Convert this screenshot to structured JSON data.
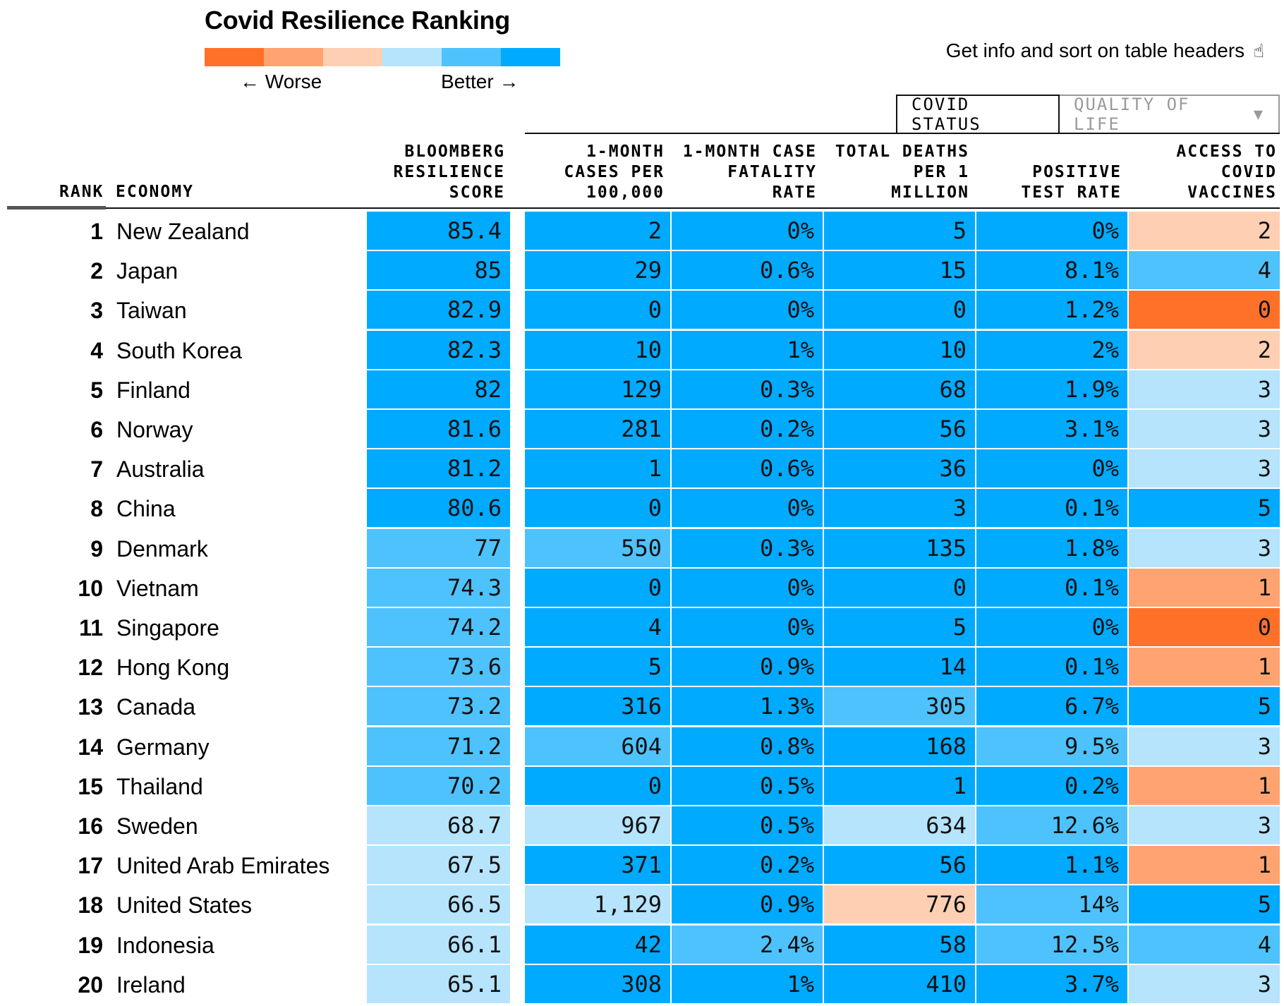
{
  "title": "Covid Resilience Ranking",
  "legend": {
    "colors": [
      "#ff7128",
      "#ffa470",
      "#ffcfb3",
      "#b5e4fc",
      "#4ec2fc",
      "#00aaff"
    ],
    "worse_label": "← Worse",
    "better_label": "Better →"
  },
  "hint": {
    "text": "Get info and sort on table headers",
    "icon": "hand-pointer-icon"
  },
  "tabs": [
    {
      "label": "COVID STATUS",
      "active": true
    },
    {
      "label": "QUALITY OF LIFE",
      "active": false,
      "icon": "filter-icon"
    }
  ],
  "headers": {
    "rank": "RANK",
    "economy": "ECONOMY",
    "score": [
      "BLOOMBERG",
      "RESILIENCE",
      "SCORE"
    ],
    "cases": [
      "1-MONTH",
      "CASES PER",
      "100,000"
    ],
    "fatality": [
      "1-MONTH CASE",
      "FATALITY",
      "RATE"
    ],
    "deaths": [
      "TOTAL DEATHS",
      "PER 1",
      "MILLION"
    ],
    "positive": [
      "POSITIVE",
      "TEST RATE"
    ],
    "vaccines": [
      "ACCESS TO",
      "COVID",
      "VACCINES"
    ]
  },
  "chart_data": {
    "type": "table",
    "title": "Covid Resilience Ranking",
    "color_scale": {
      "worst": "#ff7128",
      "worse": "#ffa470",
      "bad": "#ffcfb3",
      "ok": "#b5e4fc",
      "good": "#4ec2fc",
      "best": "#00aaff"
    },
    "columns": [
      "rank",
      "economy",
      "score",
      "cases",
      "fatality",
      "deaths",
      "positive",
      "vaccines"
    ],
    "rows": [
      {
        "rank": "1",
        "economy": "New Zealand",
        "score": "85.4",
        "cases": "2",
        "fatality": "0%",
        "deaths": "5",
        "positive": "0%",
        "vaccines": "2",
        "levels": [
          "best",
          "best",
          "best",
          "best",
          "best",
          "bad"
        ]
      },
      {
        "rank": "2",
        "economy": "Japan",
        "score": "85",
        "cases": "29",
        "fatality": "0.6%",
        "deaths": "15",
        "positive": "8.1%",
        "vaccines": "4",
        "levels": [
          "best",
          "best",
          "best",
          "best",
          "best",
          "good"
        ]
      },
      {
        "rank": "3",
        "economy": "Taiwan",
        "score": "82.9",
        "cases": "0",
        "fatality": "0%",
        "deaths": "0",
        "positive": "1.2%",
        "vaccines": "0",
        "levels": [
          "best",
          "best",
          "best",
          "best",
          "best",
          "worst"
        ]
      },
      {
        "rank": "4",
        "economy": "South Korea",
        "score": "82.3",
        "cases": "10",
        "fatality": "1%",
        "deaths": "10",
        "positive": "2%",
        "vaccines": "2",
        "levels": [
          "best",
          "best",
          "best",
          "best",
          "best",
          "bad"
        ]
      },
      {
        "rank": "5",
        "economy": "Finland",
        "score": "82",
        "cases": "129",
        "fatality": "0.3%",
        "deaths": "68",
        "positive": "1.9%",
        "vaccines": "3",
        "levels": [
          "best",
          "best",
          "best",
          "best",
          "best",
          "ok"
        ]
      },
      {
        "rank": "6",
        "economy": "Norway",
        "score": "81.6",
        "cases": "281",
        "fatality": "0.2%",
        "deaths": "56",
        "positive": "3.1%",
        "vaccines": "3",
        "levels": [
          "best",
          "best",
          "best",
          "best",
          "best",
          "ok"
        ]
      },
      {
        "rank": "7",
        "economy": "Australia",
        "score": "81.2",
        "cases": "1",
        "fatality": "0.6%",
        "deaths": "36",
        "positive": "0%",
        "vaccines": "3",
        "levels": [
          "best",
          "best",
          "best",
          "best",
          "best",
          "ok"
        ]
      },
      {
        "rank": "8",
        "economy": "China",
        "score": "80.6",
        "cases": "0",
        "fatality": "0%",
        "deaths": "3",
        "positive": "0.1%",
        "vaccines": "5",
        "levels": [
          "best",
          "best",
          "best",
          "best",
          "best",
          "best"
        ]
      },
      {
        "rank": "9",
        "economy": "Denmark",
        "score": "77",
        "cases": "550",
        "fatality": "0.3%",
        "deaths": "135",
        "positive": "1.8%",
        "vaccines": "3",
        "levels": [
          "good",
          "good",
          "best",
          "best",
          "best",
          "ok"
        ]
      },
      {
        "rank": "10",
        "economy": "Vietnam",
        "score": "74.3",
        "cases": "0",
        "fatality": "0%",
        "deaths": "0",
        "positive": "0.1%",
        "vaccines": "1",
        "levels": [
          "good",
          "best",
          "best",
          "best",
          "best",
          "worse"
        ]
      },
      {
        "rank": "11",
        "economy": "Singapore",
        "score": "74.2",
        "cases": "4",
        "fatality": "0%",
        "deaths": "5",
        "positive": "0%",
        "vaccines": "0",
        "levels": [
          "good",
          "best",
          "best",
          "best",
          "best",
          "worst"
        ]
      },
      {
        "rank": "12",
        "economy": "Hong Kong",
        "score": "73.6",
        "cases": "5",
        "fatality": "0.9%",
        "deaths": "14",
        "positive": "0.1%",
        "vaccines": "1",
        "levels": [
          "good",
          "best",
          "best",
          "best",
          "best",
          "worse"
        ]
      },
      {
        "rank": "13",
        "economy": "Canada",
        "score": "73.2",
        "cases": "316",
        "fatality": "1.3%",
        "deaths": "305",
        "positive": "6.7%",
        "vaccines": "5",
        "levels": [
          "good",
          "best",
          "best",
          "good",
          "best",
          "best"
        ]
      },
      {
        "rank": "14",
        "economy": "Germany",
        "score": "71.2",
        "cases": "604",
        "fatality": "0.8%",
        "deaths": "168",
        "positive": "9.5%",
        "vaccines": "3",
        "levels": [
          "good",
          "good",
          "best",
          "best",
          "good",
          "ok"
        ]
      },
      {
        "rank": "15",
        "economy": "Thailand",
        "score": "70.2",
        "cases": "0",
        "fatality": "0.5%",
        "deaths": "1",
        "positive": "0.2%",
        "vaccines": "1",
        "levels": [
          "good",
          "best",
          "best",
          "best",
          "best",
          "worse"
        ]
      },
      {
        "rank": "16",
        "economy": "Sweden",
        "score": "68.7",
        "cases": "967",
        "fatality": "0.5%",
        "deaths": "634",
        "positive": "12.6%",
        "vaccines": "3",
        "levels": [
          "ok",
          "ok",
          "best",
          "ok",
          "good",
          "ok"
        ]
      },
      {
        "rank": "17",
        "economy": "United Arab Emirates",
        "score": "67.5",
        "cases": "371",
        "fatality": "0.2%",
        "deaths": "56",
        "positive": "1.1%",
        "vaccines": "1",
        "levels": [
          "ok",
          "best",
          "best",
          "best",
          "best",
          "worse"
        ]
      },
      {
        "rank": "18",
        "economy": "United States",
        "score": "66.5",
        "cases": "1,129",
        "fatality": "0.9%",
        "deaths": "776",
        "positive": "14%",
        "vaccines": "5",
        "levels": [
          "ok",
          "ok",
          "best",
          "bad",
          "good",
          "best"
        ]
      },
      {
        "rank": "19",
        "economy": "Indonesia",
        "score": "66.1",
        "cases": "42",
        "fatality": "2.4%",
        "deaths": "58",
        "positive": "12.5%",
        "vaccines": "4",
        "levels": [
          "ok",
          "best",
          "good",
          "best",
          "good",
          "good"
        ]
      },
      {
        "rank": "20",
        "economy": "Ireland",
        "score": "65.1",
        "cases": "308",
        "fatality": "1%",
        "deaths": "410",
        "positive": "3.7%",
        "vaccines": "3",
        "levels": [
          "ok",
          "best",
          "best",
          "best",
          "best",
          "ok"
        ]
      }
    ]
  }
}
